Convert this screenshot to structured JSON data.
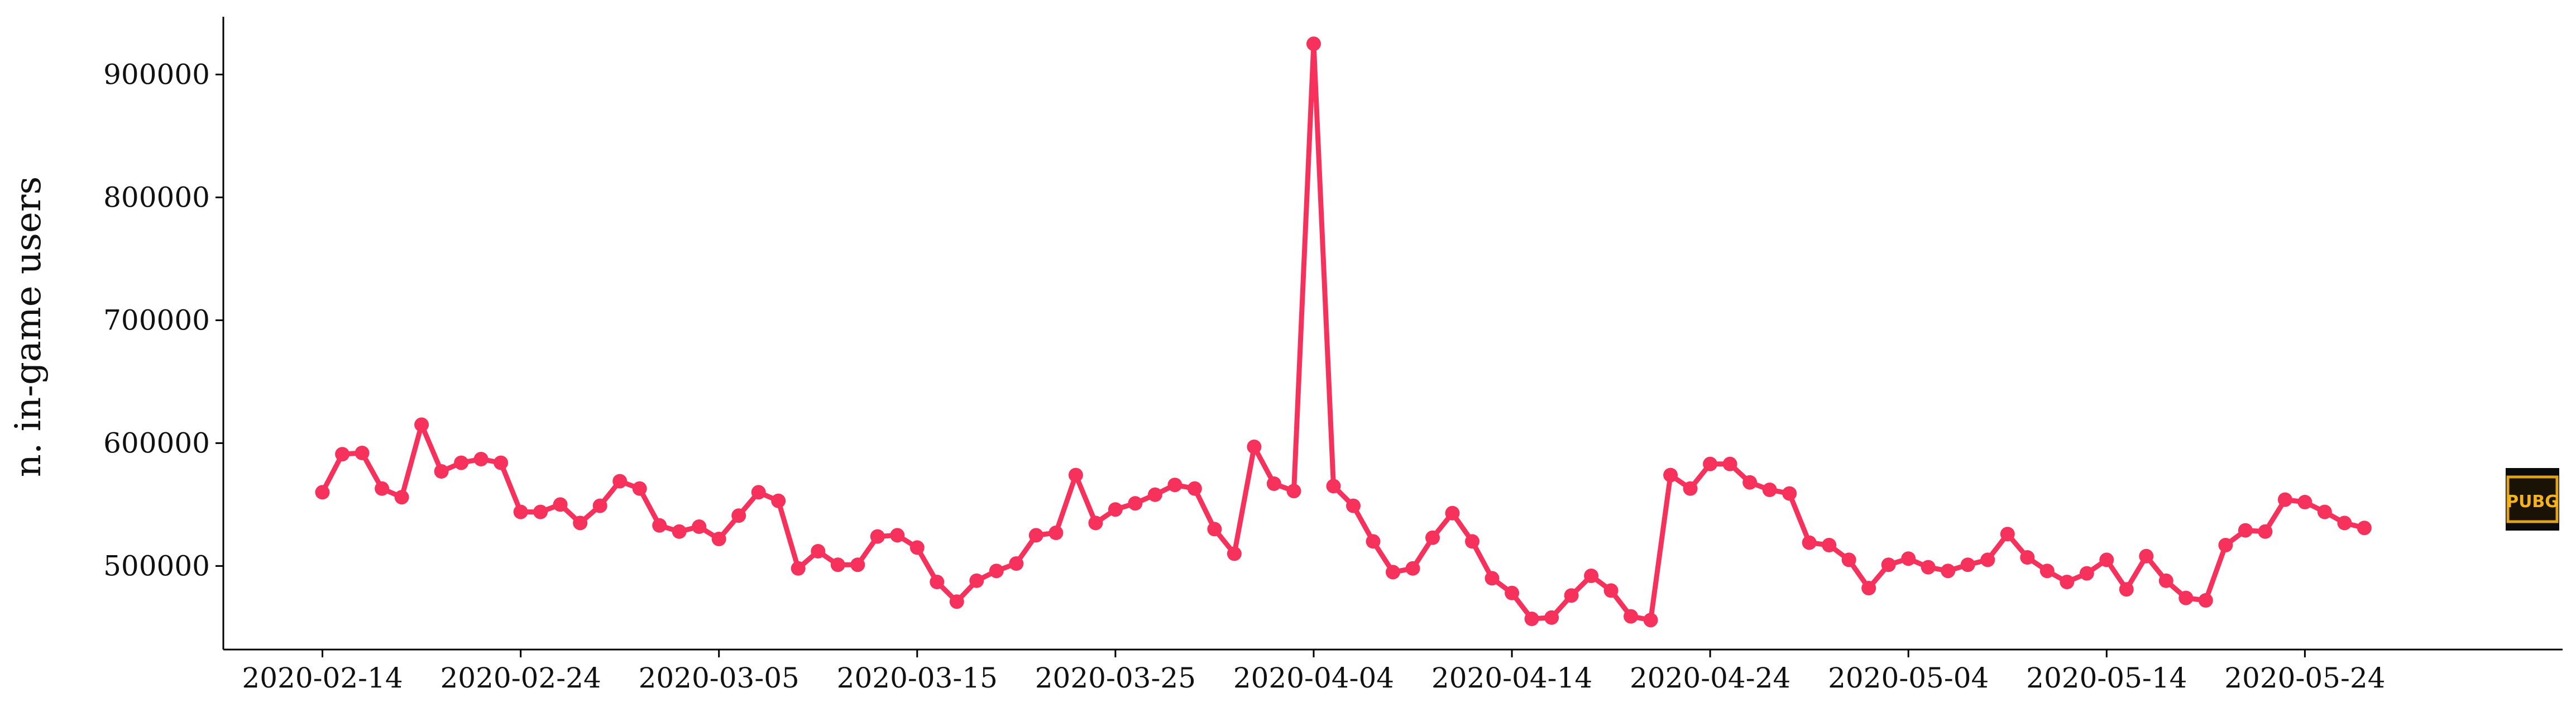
{
  "chart_data": {
    "type": "line",
    "title": "",
    "xlabel": "",
    "ylabel": "n. in-game users",
    "x_start_date": "2020-02-14",
    "x_tick_labels": [
      "2020-02-14",
      "2020-02-24",
      "2020-03-05",
      "2020-03-15",
      "2020-03-25",
      "2020-04-04",
      "2020-04-14",
      "2020-04-24",
      "2020-05-04",
      "2020-05-14",
      "2020-05-24"
    ],
    "y_tick_values": [
      500000,
      600000,
      700000,
      800000,
      900000
    ],
    "y_tick_labels": [
      "500000",
      "600000",
      "700000",
      "800000",
      "900000"
    ],
    "ylim": [
      432000,
      947000
    ],
    "xlim": [
      "2020-02-09",
      "2020-06-06"
    ],
    "grid": false,
    "legend": "none",
    "line_color": "#f5315c",
    "series": [
      {
        "values": [
          560000,
          591000,
          592000,
          563000,
          556000,
          615000,
          577000,
          584000,
          587000,
          584000,
          544000,
          544000,
          550000,
          535000,
          549000,
          569000,
          563000,
          533000,
          528000,
          532000,
          522000,
          541000,
          560000,
          553000,
          498000,
          512000,
          501000,
          501000,
          524000,
          525000,
          515000,
          487000,
          471000,
          488000,
          496000,
          502000,
          525000,
          527000,
          574000,
          535000,
          546000,
          551000,
          558000,
          566000,
          563000,
          530000,
          510000,
          597000,
          567000,
          561000,
          925000,
          565000,
          549000,
          520000,
          495000,
          498000,
          523000,
          543000,
          520000,
          490000,
          478000,
          457000,
          458000,
          476000,
          492000,
          480000,
          459000,
          456000,
          574000,
          563000,
          583000,
          583000,
          568000,
          562000,
          559000,
          519000,
          517000,
          505000,
          482000,
          501000,
          506000,
          499000,
          496000,
          501000,
          505000,
          526000,
          507000,
          496000,
          487000,
          494000,
          505000,
          481000,
          508000,
          488000,
          474000,
          472000,
          517000,
          529000,
          528000,
          554000,
          552000,
          544000,
          535000,
          531000
        ]
      }
    ],
    "logo_text": "PUBG"
  }
}
